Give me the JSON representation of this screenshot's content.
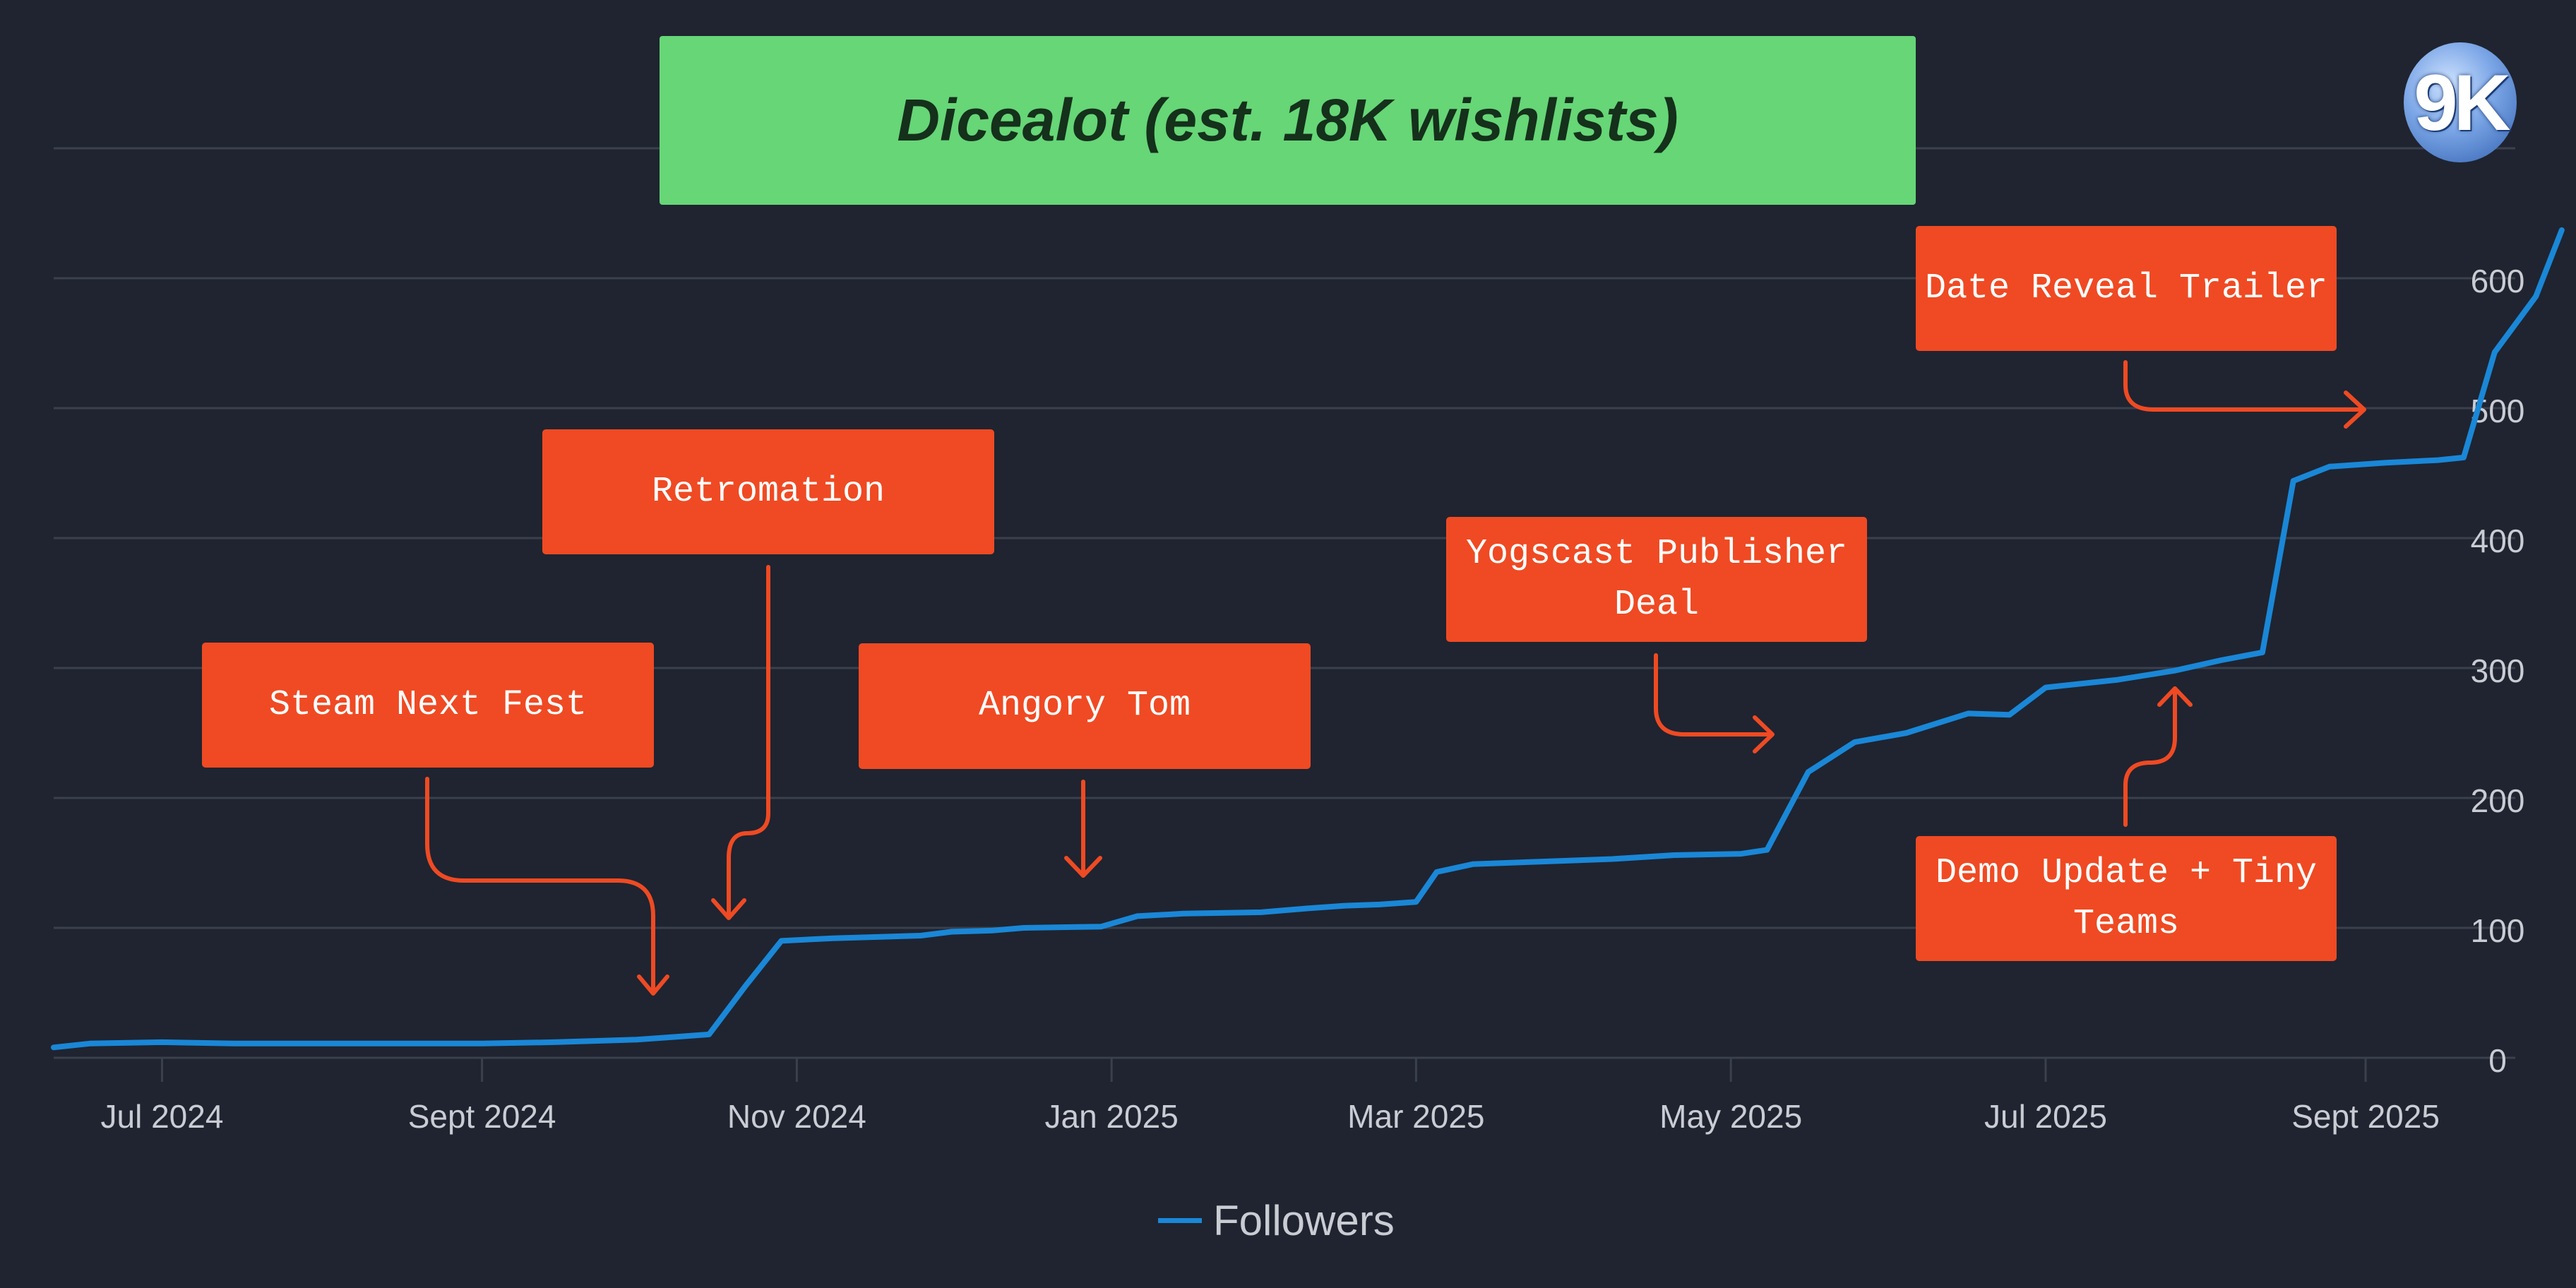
{
  "title": "Dicealot (est. 18K wishlists)",
  "logo": {
    "text": "9K"
  },
  "colors": {
    "background": "#1f2430",
    "line": "#1a87d7",
    "annotation": "#ef4a23",
    "title_box": "#66d677",
    "grid": "#3a404c",
    "tick_text": "#c9ccd3"
  },
  "annotations": [
    {
      "id": "steam-next-fest",
      "label": "Steam Next Fest",
      "target_date": "2024-10-13"
    },
    {
      "id": "retromation",
      "label": "Retromation",
      "target_date": "2024-10-18"
    },
    {
      "id": "angory-tom",
      "label": "Angory Tom",
      "target_date": "2024-12-26"
    },
    {
      "id": "yogscast-publisher-deal",
      "label": "Yogscast Publisher\nDeal",
      "target_date": "2025-05-10"
    },
    {
      "id": "demo-update-tiny-teams",
      "label": "Demo Update + Tiny\nTeams",
      "target_date": "2025-07-25"
    },
    {
      "id": "date-reveal-trailer",
      "label": "Date Reveal Trailer",
      "target_date": "2025-09-03"
    }
  ],
  "legend": {
    "position": "bottom-center",
    "label": "Followers"
  },
  "chart_data": {
    "type": "line",
    "title": "",
    "xlabel": "",
    "ylabel": "",
    "ylim": [
      0,
      700
    ],
    "xlim": [
      "2024-06-10",
      "2025-09-30"
    ],
    "y_axis_position": "right",
    "grid": true,
    "y_ticks": [
      0,
      100,
      200,
      300,
      400,
      500,
      600
    ],
    "x_ticks": [
      {
        "date": "2024-07-01",
        "label": "Jul 2024"
      },
      {
        "date": "2024-09-01",
        "label": "Sept 2024"
      },
      {
        "date": "2024-11-01",
        "label": "Nov 2024"
      },
      {
        "date": "2025-01-01",
        "label": "Jan 2025"
      },
      {
        "date": "2025-03-01",
        "label": "Mar 2025"
      },
      {
        "date": "2025-05-01",
        "label": "May 2025"
      },
      {
        "date": "2025-07-01",
        "label": "Jul 2025"
      },
      {
        "date": "2025-09-01",
        "label": "Sept 2025"
      }
    ],
    "series": [
      {
        "name": "Followers",
        "points": [
          [
            "2024-06-10",
            8
          ],
          [
            "2024-06-17",
            11
          ],
          [
            "2024-07-01",
            12
          ],
          [
            "2024-07-15",
            11
          ],
          [
            "2024-08-01",
            11
          ],
          [
            "2024-08-15",
            11
          ],
          [
            "2024-09-01",
            11
          ],
          [
            "2024-09-15",
            12
          ],
          [
            "2024-10-01",
            14
          ],
          [
            "2024-10-08",
            16
          ],
          [
            "2024-10-15",
            18
          ],
          [
            "2024-10-22",
            55
          ],
          [
            "2024-10-29",
            90
          ],
          [
            "2024-11-08",
            92
          ],
          [
            "2024-11-25",
            94
          ],
          [
            "2024-12-01",
            97
          ],
          [
            "2024-12-09",
            98
          ],
          [
            "2024-12-15",
            100
          ],
          [
            "2024-12-30",
            101
          ],
          [
            "2025-01-06",
            109
          ],
          [
            "2025-01-15",
            111
          ],
          [
            "2025-01-30",
            112
          ],
          [
            "2025-02-08",
            115
          ],
          [
            "2025-02-15",
            117
          ],
          [
            "2025-02-22",
            118
          ],
          [
            "2025-03-01",
            120
          ],
          [
            "2025-03-05",
            143
          ],
          [
            "2025-03-12",
            149
          ],
          [
            "2025-03-25",
            151
          ],
          [
            "2025-04-08",
            153
          ],
          [
            "2025-04-20",
            156
          ],
          [
            "2025-05-03",
            157
          ],
          [
            "2025-05-08",
            160
          ],
          [
            "2025-05-16",
            220
          ],
          [
            "2025-05-25",
            243
          ],
          [
            "2025-06-04",
            250
          ],
          [
            "2025-06-16",
            265
          ],
          [
            "2025-06-24",
            264
          ],
          [
            "2025-07-01",
            285
          ],
          [
            "2025-07-15",
            291
          ],
          [
            "2025-07-26",
            298
          ],
          [
            "2025-08-04",
            306
          ],
          [
            "2025-08-12",
            312
          ],
          [
            "2025-08-18",
            444
          ],
          [
            "2025-08-25",
            455
          ],
          [
            "2025-09-05",
            458
          ],
          [
            "2025-09-15",
            460
          ],
          [
            "2025-09-20",
            462
          ],
          [
            "2025-09-26",
            543
          ],
          [
            "2025-10-04",
            586
          ],
          [
            "2025-10-09",
            637
          ]
        ]
      }
    ]
  }
}
